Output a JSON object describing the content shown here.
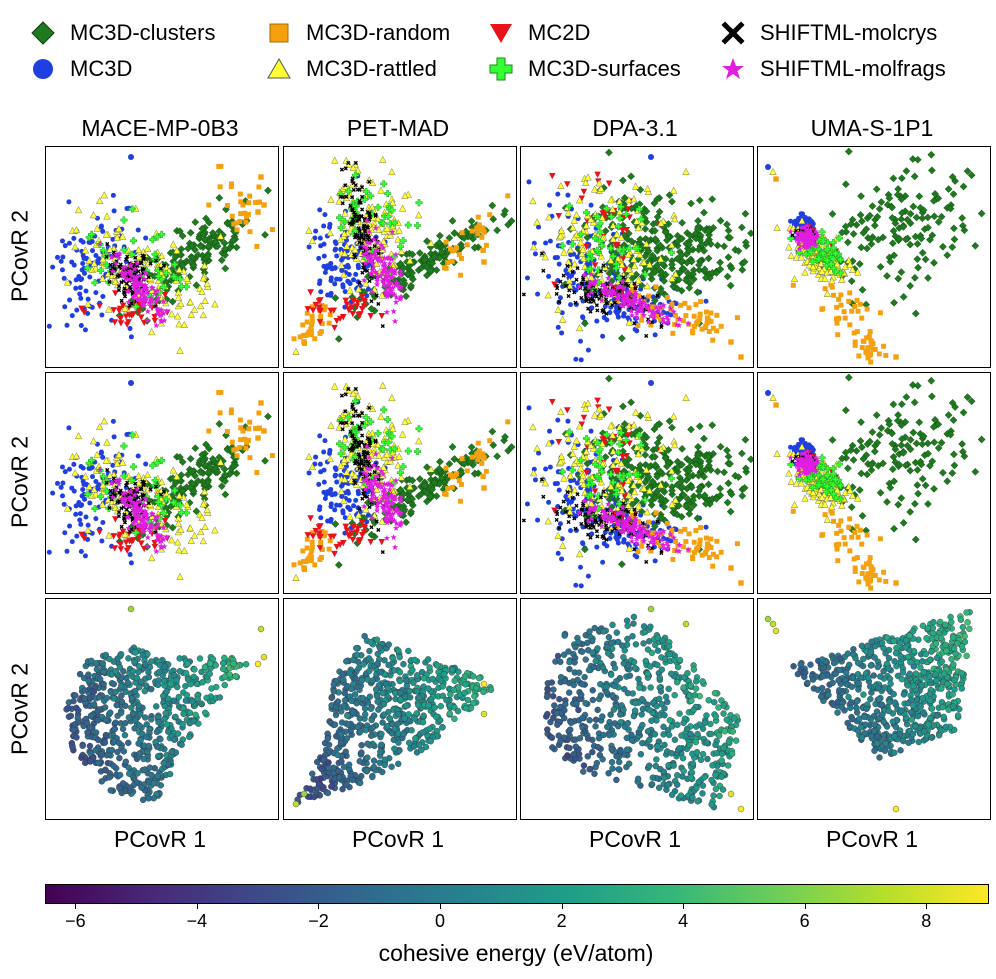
{
  "legend": [
    {
      "label": "MC3D-clusters",
      "marker": "diamond",
      "color": "#1f7a1f",
      "icon": "diamond-icon"
    },
    {
      "label": "MC3D",
      "marker": "circle",
      "color": "#1f3fe0",
      "icon": "circle-icon"
    },
    {
      "label": "MC3D-random",
      "marker": "square",
      "color": "#f5a00f",
      "icon": "square-icon"
    },
    {
      "label": "MC3D-rattled",
      "marker": "triangle-up",
      "color": "#ffff33",
      "icon": "triangle-up-icon"
    },
    {
      "label": "MC2D",
      "marker": "triangle-down",
      "color": "#e8131a",
      "icon": "triangle-down-icon"
    },
    {
      "label": "MC3D-surfaces",
      "marker": "plus",
      "color": "#33ff33",
      "icon": "plus-icon"
    },
    {
      "label": "SHIFTML-molcrys",
      "marker": "x",
      "color": "#000000",
      "icon": "x-icon"
    },
    {
      "label": "SHIFTML-molfrags",
      "marker": "star",
      "color": "#e01ee0",
      "icon": "star-icon"
    }
  ],
  "columns": [
    "MACE-MP-0B3",
    "PET-MAD",
    "DPA-3.1",
    "UMA-S-1P1"
  ],
  "row_label": "PCovR 2",
  "x_label": "PCovR 1",
  "colorbar": {
    "label": "cohesive energy (eV/atom)",
    "min": -6.5,
    "max": 9,
    "ticks": [
      -6,
      -4,
      -2,
      0,
      2,
      4,
      6,
      8
    ],
    "tick_labels": [
      "−6",
      "−4",
      "−2",
      "0",
      "2",
      "4",
      "6",
      "8"
    ],
    "colormap": [
      "#440154",
      "#482878",
      "#3e4989",
      "#31688e",
      "#26828e",
      "#1f9e89",
      "#35b779",
      "#6ece58",
      "#b5de2b",
      "#fde725"
    ]
  },
  "chart_data": [
    {
      "type": "scatter",
      "row": "dataset",
      "model": "MACE-MP-0B3",
      "xlabel": "",
      "ylabel": "PCovR 2",
      "series": [
        "MC3D-clusters",
        "MC3D",
        "MC3D-random",
        "MC3D-rattled",
        "MC2D",
        "MC3D-surfaces",
        "SHIFTML-molcrys",
        "SHIFTML-molfrags"
      ],
      "x_range": [
        0,
        1
      ],
      "y_range": [
        0,
        1
      ],
      "clusters": {
        "MC3D": [
          0.28,
          0.48
        ],
        "MC3D-rattled": [
          0.38,
          0.5
        ],
        "MC3D-surfaces": [
          0.4,
          0.48
        ],
        "MC2D": [
          0.38,
          0.3
        ],
        "MC3D-clusters": [
          0.7,
          0.55
        ],
        "MC3D-random": [
          0.85,
          0.7
        ],
        "SHIFTML-molcrys": [
          0.38,
          0.53
        ],
        "SHIFTML-molfrags": [
          0.42,
          0.45
        ]
      }
    },
    {
      "type": "scatter",
      "row": "dataset",
      "model": "PET-MAD",
      "xlabel": "",
      "ylabel": "",
      "series": [
        "MC3D-clusters",
        "MC3D",
        "MC3D-random",
        "MC3D-rattled",
        "MC2D",
        "MC3D-surfaces",
        "SHIFTML-molcrys",
        "SHIFTML-molfrags"
      ],
      "x_range": [
        0,
        1
      ],
      "y_range": [
        0,
        1
      ],
      "clusters": {
        "MC3D": [
          0.3,
          0.5
        ],
        "MC3D-rattled": [
          0.4,
          0.6
        ],
        "MC3D-surfaces": [
          0.5,
          0.45
        ],
        "MC2D": [
          0.3,
          0.25
        ],
        "MC3D-clusters": [
          0.65,
          0.45
        ],
        "MC3D-random": [
          0.8,
          0.6
        ],
        "SHIFTML-molcrys": [
          0.38,
          0.68
        ],
        "SHIFTML-molfrags": [
          0.47,
          0.43
        ]
      }
    },
    {
      "type": "scatter",
      "row": "dataset",
      "model": "DPA-3.1",
      "xlabel": "",
      "ylabel": "",
      "series": [
        "MC3D-clusters",
        "MC3D",
        "MC3D-random",
        "MC3D-rattled",
        "MC2D",
        "MC3D-surfaces",
        "SHIFTML-molcrys",
        "SHIFTML-molfrags"
      ],
      "x_range": [
        0,
        1
      ],
      "y_range": [
        0,
        1
      ],
      "clusters": {
        "MC3D": [
          0.3,
          0.55
        ],
        "MC3D-rattled": [
          0.35,
          0.6
        ],
        "MC3D-surfaces": [
          0.35,
          0.55
        ],
        "MC2D": [
          0.3,
          0.5
        ],
        "MC3D-clusters": [
          0.7,
          0.5
        ],
        "MC3D-random": [
          0.6,
          0.25
        ],
        "SHIFTML-molcrys": [
          0.4,
          0.3
        ],
        "SHIFTML-molfrags": [
          0.45,
          0.3
        ]
      }
    },
    {
      "type": "scatter",
      "row": "dataset",
      "model": "UMA-S-1P1",
      "xlabel": "",
      "ylabel": "",
      "series": [
        "MC3D-clusters",
        "MC3D",
        "MC3D-random",
        "MC3D-rattled",
        "MC2D",
        "MC3D-surfaces",
        "SHIFTML-molcrys",
        "SHIFTML-molfrags"
      ],
      "x_range": [
        0,
        1
      ],
      "y_range": [
        0,
        1
      ],
      "clusters": {
        "MC3D": [
          0.2,
          0.6
        ],
        "MC3D-rattled": [
          0.15,
          0.7
        ],
        "MC3D-surfaces": [
          0.2,
          0.6
        ],
        "MC2D": [
          0.25,
          0.6
        ],
        "MC3D-clusters": [
          0.6,
          0.65
        ],
        "MC3D-random": [
          0.45,
          0.25
        ],
        "SHIFTML-molcrys": [
          0.22,
          0.58
        ],
        "SHIFTML-molfrags": [
          0.24,
          0.56
        ]
      }
    },
    {
      "type": "scatter",
      "row": "dataset-repeat",
      "model": "MACE-MP-0B3",
      "xlabel": "",
      "ylabel": "PCovR 2",
      "series": [
        "MC3D-clusters",
        "MC3D",
        "MC3D-random",
        "MC3D-rattled",
        "MC2D",
        "MC3D-surfaces",
        "SHIFTML-molcrys",
        "SHIFTML-molfrags"
      ],
      "x_range": [
        0,
        1
      ],
      "y_range": [
        0,
        1
      ]
    },
    {
      "type": "scatter",
      "row": "dataset-repeat",
      "model": "PET-MAD",
      "xlabel": "",
      "ylabel": "",
      "series": [
        "MC3D-clusters",
        "MC3D",
        "MC3D-random",
        "MC3D-rattled",
        "MC2D",
        "MC3D-surfaces",
        "SHIFTML-molcrys",
        "SHIFTML-molfrags"
      ],
      "x_range": [
        0,
        1
      ],
      "y_range": [
        0,
        1
      ]
    },
    {
      "type": "scatter",
      "row": "dataset-repeat",
      "model": "DPA-3.1",
      "xlabel": "",
      "ylabel": "",
      "series": [
        "MC3D-clusters",
        "MC3D",
        "MC3D-random",
        "MC3D-rattled",
        "MC2D",
        "MC3D-surfaces",
        "SHIFTML-molcrys",
        "SHIFTML-molfrags"
      ],
      "x_range": [
        0,
        1
      ],
      "y_range": [
        0,
        1
      ]
    },
    {
      "type": "scatter",
      "row": "dataset-repeat",
      "model": "UMA-S-1P1",
      "xlabel": "",
      "ylabel": "",
      "series": [
        "MC3D-clusters",
        "MC3D",
        "MC3D-random",
        "MC3D-rattled",
        "MC2D",
        "MC3D-surfaces",
        "SHIFTML-molcrys",
        "SHIFTML-molfrags"
      ],
      "x_range": [
        0,
        1
      ],
      "y_range": [
        0,
        1
      ]
    },
    {
      "type": "scatter",
      "row": "cohesive-energy",
      "model": "MACE-MP-0B3",
      "xlabel": "PCovR 1",
      "ylabel": "PCovR 2",
      "color_by": "cohesive energy (eV/atom)",
      "x_range": [
        0,
        1
      ],
      "y_range": [
        0,
        1
      ]
    },
    {
      "type": "scatter",
      "row": "cohesive-energy",
      "model": "PET-MAD",
      "xlabel": "PCovR 1",
      "ylabel": "",
      "color_by": "cohesive energy (eV/atom)",
      "x_range": [
        0,
        1
      ],
      "y_range": [
        0,
        1
      ]
    },
    {
      "type": "scatter",
      "row": "cohesive-energy",
      "model": "DPA-3.1",
      "xlabel": "PCovR 1",
      "ylabel": "",
      "color_by": "cohesive energy (eV/atom)",
      "x_range": [
        0,
        1
      ],
      "y_range": [
        0,
        1
      ]
    },
    {
      "type": "scatter",
      "row": "cohesive-energy",
      "model": "UMA-S-1P1",
      "xlabel": "PCovR 1",
      "ylabel": "",
      "color_by": "cohesive energy (eV/atom)",
      "x_range": [
        0,
        1
      ],
      "y_range": [
        0,
        1
      ]
    }
  ]
}
